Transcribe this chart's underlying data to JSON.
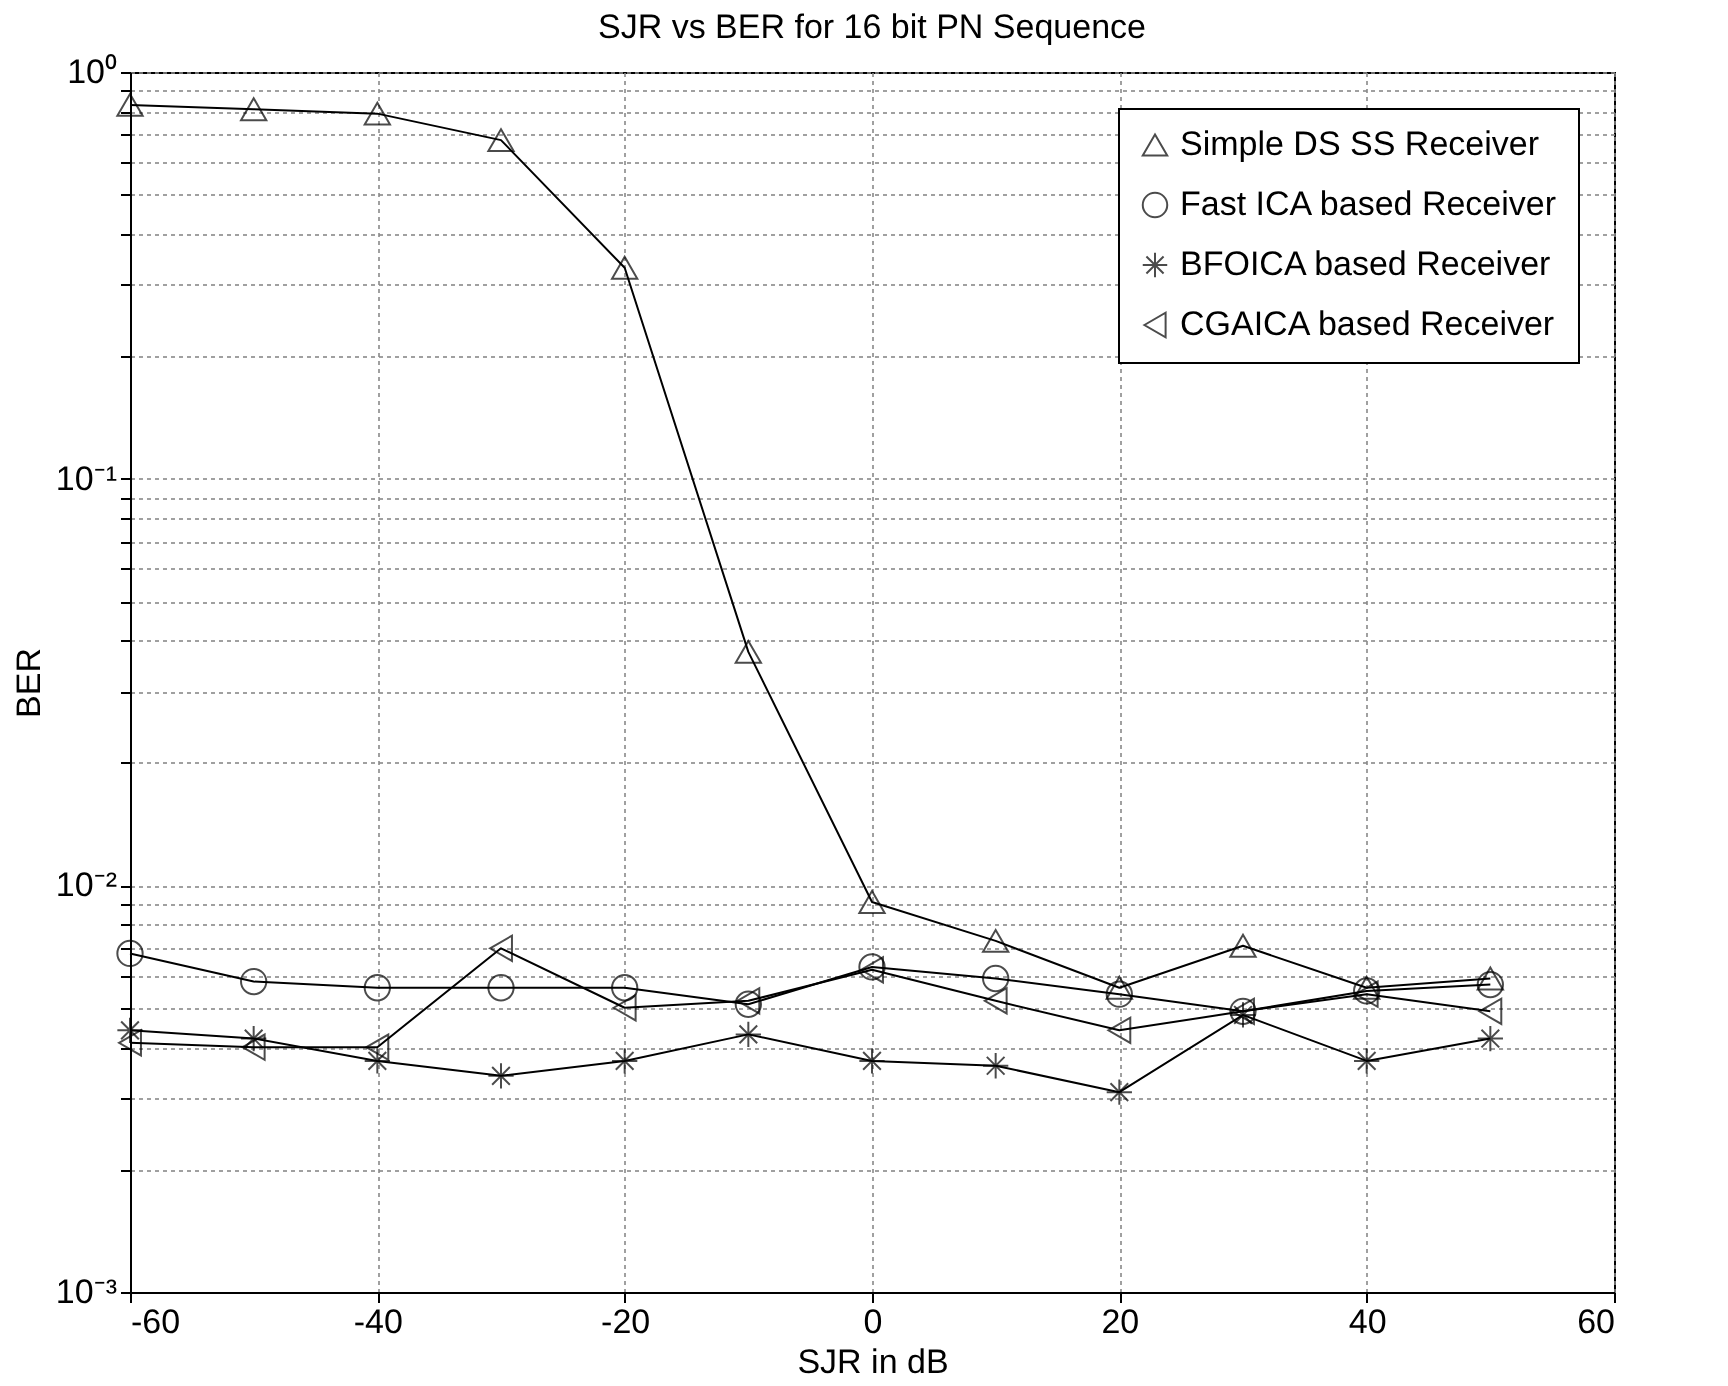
{
  "chart_data": {
    "type": "line",
    "title": "SJR vs BER for 16 bit PN Sequence",
    "xlabel": "SJR in dB",
    "ylabel": "BER",
    "x": [
      -60,
      -50,
      -40,
      -30,
      -20,
      -10,
      0,
      10,
      20,
      30,
      40,
      50
    ],
    "series": [
      {
        "name": "Simple DS SS Receiver",
        "color": "#000000",
        "marker": "triangle",
        "values": [
          0.83,
          0.81,
          0.79,
          0.68,
          0.33,
          0.0375,
          0.0091,
          0.0073,
          0.0056,
          0.0071,
          0.0056,
          0.0059
        ]
      },
      {
        "name": "Fast ICA based Receiver",
        "color": "#000000",
        "marker": "circle",
        "values": [
          0.0068,
          0.0058,
          0.0056,
          0.0056,
          0.0056,
          0.0051,
          0.0063,
          0.0059,
          0.0054,
          0.0049,
          0.0055,
          0.0057
        ]
      },
      {
        "name": "BFOICA based Receiver",
        "color": "#000000",
        "marker": "cross",
        "values": [
          0.0044,
          0.0042,
          0.0037,
          0.0034,
          0.0037,
          0.0043,
          0.0037,
          0.0036,
          0.0031,
          0.0048,
          0.0037,
          0.0042
        ]
      },
      {
        "name": "CGAICA based Receiver",
        "color": "#000000",
        "marker": "triangle-left",
        "values": [
          0.0041,
          0.004,
          0.004,
          0.007,
          0.005,
          0.0052,
          0.0062,
          0.0052,
          0.0044,
          0.0049,
          0.0054,
          0.0049
        ]
      }
    ],
    "xlim": [
      -60,
      60
    ],
    "xticks": [
      -60,
      -40,
      -20,
      0,
      20,
      40,
      60
    ],
    "ylim": [
      0.001,
      1
    ],
    "log": true,
    "yticks": [
      {
        "value": 0.001,
        "label": "10⁻³"
      },
      {
        "value": 0.002,
        "label": null
      },
      {
        "value": 0.003,
        "label": null
      },
      {
        "value": 0.004,
        "label": null
      },
      {
        "value": 0.005,
        "label": null
      },
      {
        "value": 0.006,
        "label": null
      },
      {
        "value": 0.007,
        "label": null
      },
      {
        "value": 0.008,
        "label": null
      },
      {
        "value": 0.009,
        "label": null
      },
      {
        "value": 0.01,
        "label": "10⁻²"
      },
      {
        "value": 0.02,
        "label": null
      },
      {
        "value": 0.03,
        "label": null
      },
      {
        "value": 0.04,
        "label": null
      },
      {
        "value": 0.05,
        "label": null
      },
      {
        "value": 0.06,
        "label": null
      },
      {
        "value": 0.07,
        "label": null
      },
      {
        "value": 0.08,
        "label": null
      },
      {
        "value": 0.09,
        "label": null
      },
      {
        "value": 0.1,
        "label": "10⁻¹"
      },
      {
        "value": 0.2,
        "label": null
      },
      {
        "value": 0.3,
        "label": null
      },
      {
        "value": 0.4,
        "label": null
      },
      {
        "value": 0.5,
        "label": null
      },
      {
        "value": 0.6,
        "label": null
      },
      {
        "value": 0.7,
        "label": null
      },
      {
        "value": 0.8,
        "label": null
      },
      {
        "value": 0.9,
        "label": null
      },
      {
        "value": 1,
        "label": "10⁰"
      }
    ],
    "grid": true,
    "legend": "top right",
    "line_style": "solid"
  }
}
